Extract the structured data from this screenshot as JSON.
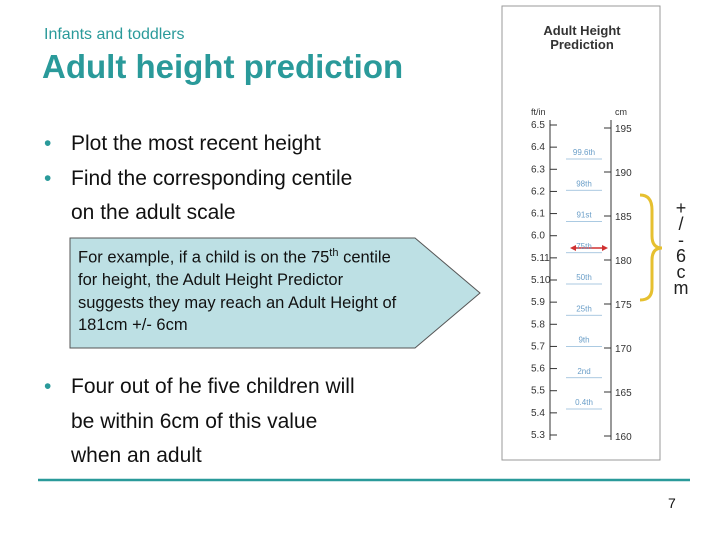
{
  "header": {
    "subtitle": "Infants and toddlers",
    "title": "Adult height prediction"
  },
  "bullets_top": [
    "Plot the most recent height",
    "Find the corresponding centile",
    "on the adult scale"
  ],
  "bullet_marker": "•",
  "callout": {
    "before": "For example, if a child is on the 75",
    "sup": "th",
    "after": "centile for height, the Adult Height Predictor suggests they may reach an Adult Height of 181cm +/- 6cm"
  },
  "bullets_bottom": [
    "Four out of he five children will",
    "be within 6cm of this value",
    "when an adult"
  ],
  "panel": {
    "title_line1": "Adult Height",
    "title_line2": "Prediction",
    "left_unit": "ft/in",
    "right_unit": "cm",
    "ft_labels": [
      "6.5",
      "6.4",
      "6.3",
      "6.2",
      "6.1",
      "6.0",
      "5.11",
      "5.10",
      "5.9",
      "5.8",
      "5.7",
      "5.6",
      "5.5",
      "5.4",
      "5.3"
    ],
    "cm_labels": [
      "195",
      "190",
      "185",
      "180",
      "175",
      "170",
      "165",
      "160"
    ],
    "centiles": [
      "99.6th",
      "98th",
      "91st",
      "75th",
      "50th",
      "25th",
      "9th",
      "2nd",
      "0.4th"
    ],
    "range_note": "+/-6cm"
  },
  "page_number": "7"
}
